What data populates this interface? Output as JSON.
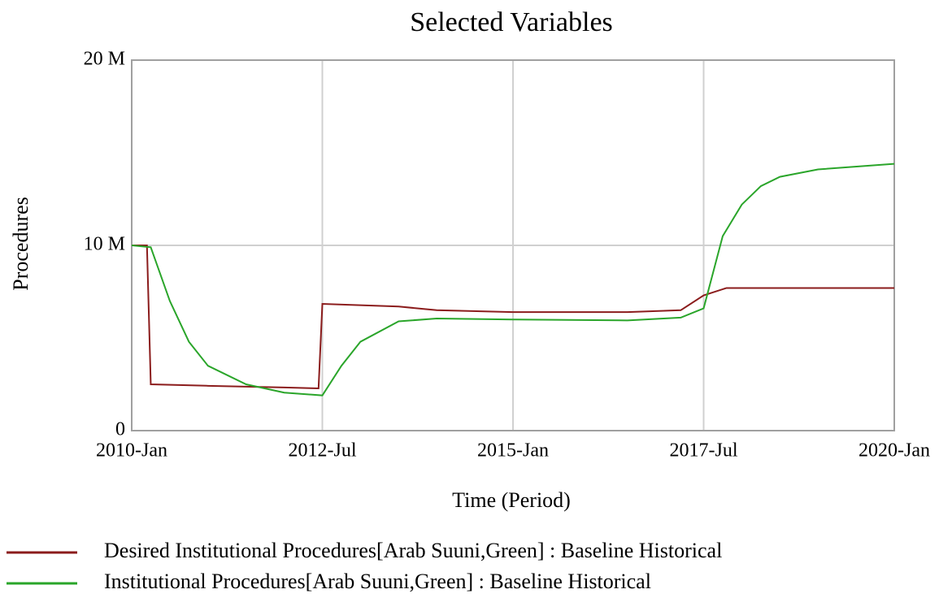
{
  "chart_data": {
    "type": "line",
    "title": "Selected Variables",
    "x_label": "Time (Period)",
    "y_label": "Procedures",
    "xlim": [
      2010,
      2020
    ],
    "xticks": [
      {
        "value": 2010,
        "label": "2010-Jan"
      },
      {
        "value": 2012.5,
        "label": "2012-Jul"
      },
      {
        "value": 2015,
        "label": "2015-Jan"
      },
      {
        "value": 2017.5,
        "label": "2017-Jul"
      },
      {
        "value": 2020,
        "label": "2020-Jan"
      }
    ],
    "ylim": [
      0,
      20000000
    ],
    "yticks": [
      0,
      {
        "value": 10000000,
        "label": "10 M"
      },
      {
        "value": 20000000,
        "label": "20 M"
      }
    ],
    "grid": true,
    "series": [
      {
        "name": "Desired Institutional Procedures[Arab Suuni,Green] : Baseline Historical",
        "color": "#8b1c1c",
        "x": [
          2010,
          2010.2,
          2010.25,
          2011,
          2012,
          2012.45,
          2012.5,
          2013.5,
          2014,
          2015,
          2016.5,
          2017.2,
          2017.5,
          2017.8,
          2020
        ],
        "values": [
          10000000,
          10000000,
          2500000,
          2420000,
          2330000,
          2280000,
          6840000,
          6700000,
          6500000,
          6400000,
          6400000,
          6500000,
          7300000,
          7700000,
          7700000
        ]
      },
      {
        "name": "Institutional Procedures[Arab Suuni,Green] : Baseline Historical",
        "color": "#2aa52a",
        "x": [
          2010,
          2010.25,
          2010.5,
          2010.75,
          2011,
          2011.5,
          2012,
          2012.5,
          2012.75,
          2013,
          2013.5,
          2014,
          2015,
          2016.5,
          2017.2,
          2017.5,
          2017.75,
          2018,
          2018.25,
          2018.5,
          2019,
          2020
        ],
        "values": [
          10000000,
          9900000,
          7000000,
          4800000,
          3500000,
          2500000,
          2050000,
          1900000,
          3500000,
          4800000,
          5900000,
          6050000,
          6000000,
          5950000,
          6100000,
          6600000,
          10500000,
          12200000,
          13200000,
          13700000,
          14100000,
          14400000
        ]
      }
    ]
  }
}
